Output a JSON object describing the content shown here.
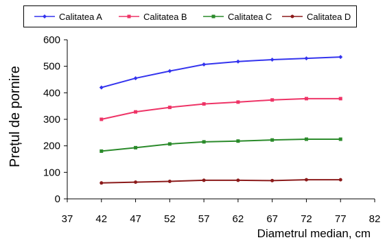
{
  "chart_data": {
    "type": "line",
    "title": "",
    "xlabel": "Diametrul median, cm",
    "ylabel": "Prețul de pornire",
    "xlim": [
      37,
      82
    ],
    "ylim": [
      0,
      600
    ],
    "x_ticks": [
      37,
      42,
      47,
      52,
      57,
      62,
      67,
      72,
      77,
      82
    ],
    "y_ticks": [
      0,
      100,
      200,
      300,
      400,
      500,
      600
    ],
    "legend_position": "top",
    "grid": false,
    "x": [
      42,
      47,
      52,
      57,
      62,
      67,
      72,
      77
    ],
    "series": [
      {
        "name": "Calitatea A",
        "color": "#3333ee",
        "marker": "diamond",
        "values": [
          420,
          455,
          482,
          507,
          518,
          525,
          530,
          535
        ]
      },
      {
        "name": "Calitatea B",
        "color": "#ee3366",
        "marker": "square",
        "values": [
          300,
          328,
          345,
          358,
          365,
          373,
          378,
          378
        ]
      },
      {
        "name": "Calitatea C",
        "color": "#2a8a2a",
        "marker": "square",
        "values": [
          180,
          193,
          207,
          215,
          218,
          222,
          225,
          225
        ]
      },
      {
        "name": "Calitatea D",
        "color": "#8b1a1a",
        "marker": "dot",
        "values": [
          60,
          63,
          66,
          70,
          70,
          69,
          72,
          72
        ]
      }
    ]
  }
}
